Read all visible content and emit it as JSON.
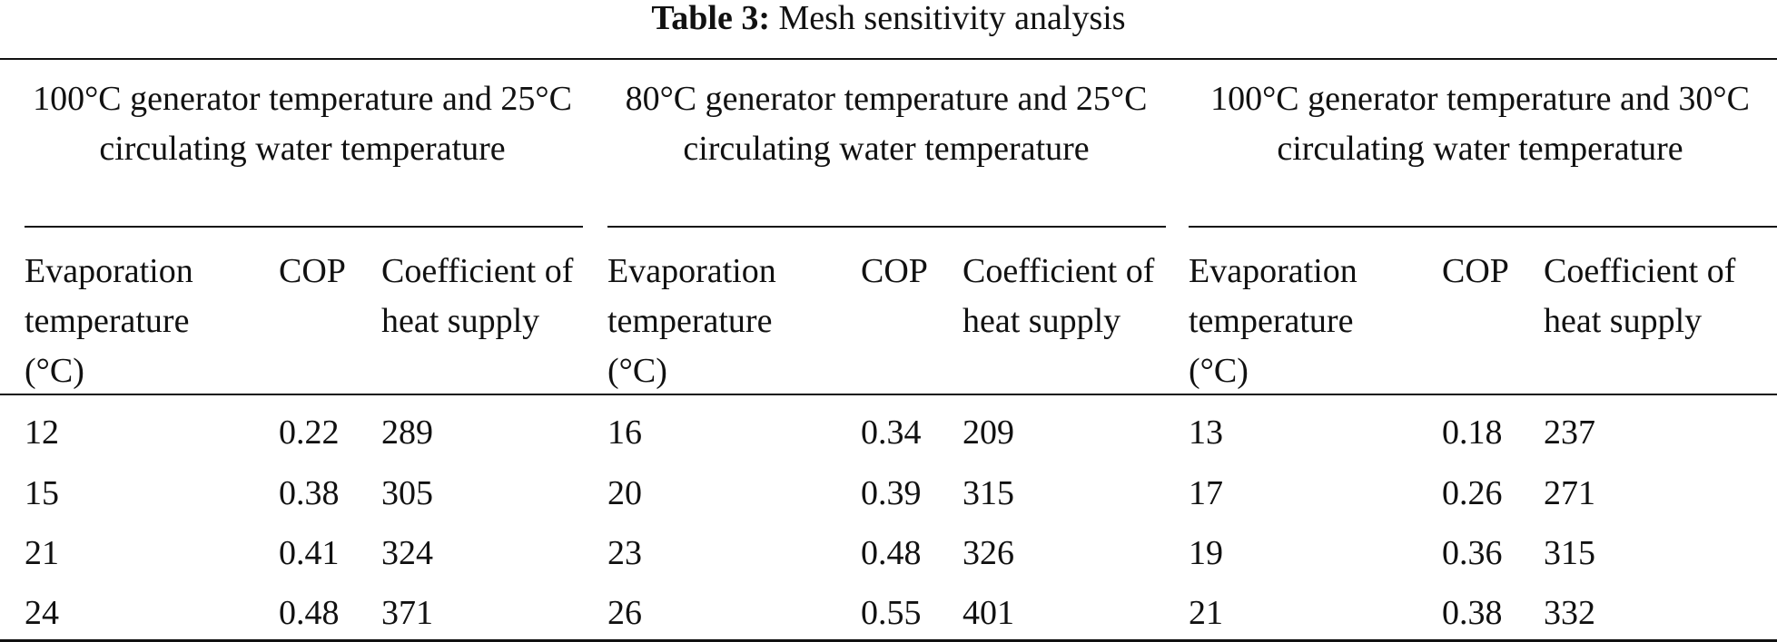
{
  "caption": {
    "label": "Table 3:",
    "title": "Mesh sensitivity analysis"
  },
  "groups": [
    {
      "header": "100°C generator temperature and 25°C circulating water temperature",
      "columns": [
        "Evaporation temperature (°C)",
        "COP",
        "Coefficient of heat supply"
      ],
      "rows": [
        [
          "12",
          "0.22",
          "289"
        ],
        [
          "15",
          "0.38",
          "305"
        ],
        [
          "21",
          "0.41",
          "324"
        ],
        [
          "24",
          "0.48",
          "371"
        ]
      ]
    },
    {
      "header": "80°C generator temperature and 25°C circulating water temperature",
      "columns": [
        "Evaporation temperature (°C)",
        "COP",
        "Coefficient of heat supply"
      ],
      "rows": [
        [
          "16",
          "0.34",
          "209"
        ],
        [
          "20",
          "0.39",
          "315"
        ],
        [
          "23",
          "0.48",
          "326"
        ],
        [
          "26",
          "0.55",
          "401"
        ]
      ]
    },
    {
      "header": "100°C generator temperature and 30°C circulating water temperature",
      "columns": [
        "Evaporation temperature (°C)",
        "COP",
        "Coefficient of heat supply"
      ],
      "rows": [
        [
          "13",
          "0.18",
          "237"
        ],
        [
          "17",
          "0.26",
          "271"
        ],
        [
          "19",
          "0.36",
          "315"
        ],
        [
          "21",
          "0.38",
          "332"
        ]
      ]
    }
  ]
}
